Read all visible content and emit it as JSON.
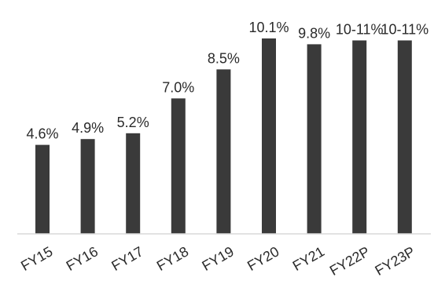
{
  "chart_data": {
    "type": "bar",
    "title": "",
    "xlabel": "",
    "ylabel": "",
    "categories": [
      "FY15",
      "FY16",
      "FY17",
      "FY18",
      "FY19",
      "FY20",
      "FY21",
      "FY22P",
      "FY23P"
    ],
    "values": [
      4.6,
      4.9,
      5.2,
      7.0,
      8.5,
      10.1,
      9.8,
      10.0,
      10.0
    ],
    "data_labels": [
      "4.6%",
      "4.9%",
      "5.2%",
      "7.0%",
      "8.5%",
      "10.1%",
      "9.8%",
      "10-11%",
      "10-11%"
    ],
    "ylim": [
      0,
      10.1
    ],
    "grid": false,
    "legend": "none",
    "colors": {
      "bar": "#3a3a3a",
      "axis": "#d9d9d9",
      "text": "#2a2a2a"
    }
  }
}
